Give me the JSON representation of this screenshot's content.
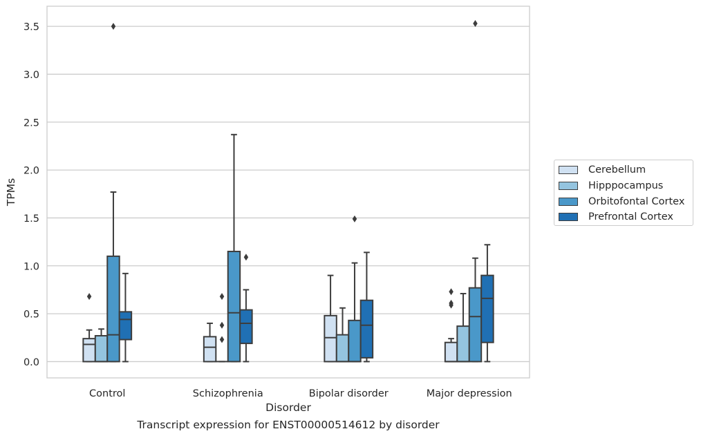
{
  "chart_data": {
    "type": "box",
    "caption": "Transcript expression for ENST00000514612 by disorder",
    "xlabel": "Disorder",
    "ylabel": "TPMs",
    "ylim": [
      -0.17,
      3.71
    ],
    "yticks": [
      0.0,
      0.5,
      1.0,
      1.5,
      2.0,
      2.5,
      3.0,
      3.5
    ],
    "ytick_labels": [
      "0.0",
      "0.5",
      "1.0",
      "1.5",
      "2.0",
      "2.5",
      "3.0",
      "3.5"
    ],
    "grid": "horizontal",
    "legend_position": "right",
    "categories": [
      "Control",
      "Schizophrenia",
      "Bipolar disorder",
      "Major depression"
    ],
    "series": [
      {
        "name": "Cerebellum",
        "color": "#d0e1f2",
        "boxes": [
          {
            "whislo": 0.0,
            "q1": 0.0,
            "med": 0.18,
            "q3": 0.24,
            "whishi": 0.33,
            "fliers": [
              0.68
            ]
          },
          {
            "whislo": 0.0,
            "q1": 0.0,
            "med": 0.15,
            "q3": 0.26,
            "whishi": 0.4,
            "fliers": []
          },
          {
            "whislo": 0.0,
            "q1": 0.0,
            "med": 0.25,
            "q3": 0.48,
            "whishi": 0.9,
            "fliers": []
          },
          {
            "whislo": 0.0,
            "q1": 0.0,
            "med": 0.0,
            "q3": 0.2,
            "whishi": 0.24,
            "fliers": [
              0.61,
              0.59,
              0.73
            ]
          }
        ]
      },
      {
        "name": "Hipppocampus",
        "color": "#94c4df",
        "boxes": [
          {
            "whislo": 0.0,
            "q1": 0.0,
            "med": 0.0,
            "q3": 0.27,
            "whishi": 0.34,
            "fliers": []
          },
          {
            "whislo": 0.0,
            "q1": 0.0,
            "med": 0.0,
            "q3": 0.0,
            "whishi": 0.0,
            "fliers": [
              0.23,
              0.38,
              0.68
            ]
          },
          {
            "whislo": 0.0,
            "q1": 0.0,
            "med": 0.0,
            "q3": 0.28,
            "whishi": 0.56,
            "fliers": []
          },
          {
            "whislo": 0.0,
            "q1": 0.0,
            "med": 0.0,
            "q3": 0.37,
            "whishi": 0.71,
            "fliers": []
          }
        ]
      },
      {
        "name": "Orbitofontal Cortex",
        "color": "#4a98c9",
        "boxes": [
          {
            "whislo": 0.0,
            "q1": 0.0,
            "med": 0.28,
            "q3": 1.1,
            "whishi": 1.77,
            "fliers": [
              3.5
            ]
          },
          {
            "whislo": 0.0,
            "q1": 0.0,
            "med": 0.51,
            "q3": 1.15,
            "whishi": 2.37,
            "fliers": []
          },
          {
            "whislo": 0.0,
            "q1": 0.0,
            "med": 0.0,
            "q3": 0.43,
            "whishi": 1.03,
            "fliers": [
              1.49
            ]
          },
          {
            "whislo": 0.0,
            "q1": 0.0,
            "med": 0.47,
            "q3": 0.77,
            "whishi": 1.08,
            "fliers": [
              3.53
            ]
          }
        ]
      },
      {
        "name": "Prefrontal Cortex",
        "color": "#2070b4",
        "boxes": [
          {
            "whislo": 0.0,
            "q1": 0.23,
            "med": 0.44,
            "q3": 0.52,
            "whishi": 0.92,
            "fliers": []
          },
          {
            "whislo": 0.0,
            "q1": 0.19,
            "med": 0.4,
            "q3": 0.54,
            "whishi": 0.75,
            "fliers": [
              1.09
            ]
          },
          {
            "whislo": 0.0,
            "q1": 0.04,
            "med": 0.38,
            "q3": 0.64,
            "whishi": 1.14,
            "fliers": []
          },
          {
            "whislo": 0.0,
            "q1": 0.2,
            "med": 0.66,
            "q3": 0.9,
            "whishi": 1.22,
            "fliers": []
          }
        ]
      }
    ]
  }
}
